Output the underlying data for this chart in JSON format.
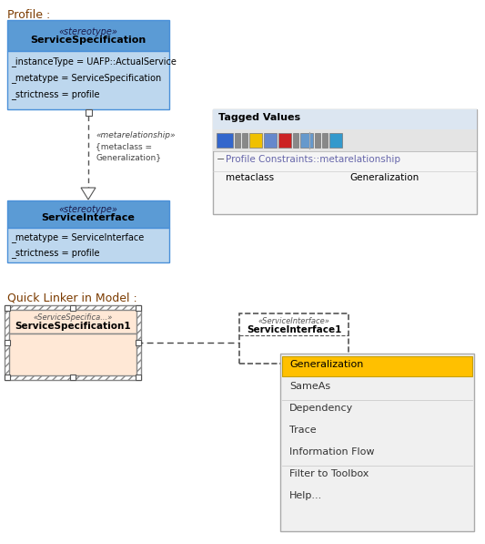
{
  "bg_color": "#ffffff",
  "title_color": "#7B3B00",
  "fig_w": 5.33,
  "fig_h": 5.97,
  "dpi": 100,
  "profile_label": "Profile :",
  "quicklinker_label": "Quick Linker in Model :",
  "ss_header_text1": "«stereotype»",
  "ss_header_text2": "ServiceSpecification",
  "ss_body_lines": [
    "_instanceType = UAFP::ActualService",
    "_metatype = ServiceSpecification",
    "_strictness = profile"
  ],
  "ss_header_bg": "#5b9bd5",
  "ss_body_bg": "#bdd7ee",
  "si_header_text1": "«stereotype»",
  "si_header_text2": "ServiceInterface",
  "si_body_lines": [
    "_metatype = ServiceInterface",
    "_strictness = profile"
  ],
  "si_header_bg": "#5b9bd5",
  "si_body_bg": "#bdd7ee",
  "metarel_label1": "«metarelationship»",
  "metarel_label2": "{metaclass =",
  "metarel_label3": "Generalization}",
  "tv_title": "Tagged Values",
  "tv_row1": "Profile Constraints::metarelationship",
  "tv_col1": "metaclass",
  "tv_col2": "Generalization",
  "ql_ss_stereo": "«ServiceSpecifica...»",
  "ql_ss_name": "ServiceSpecification1",
  "ql_si_stereo": "«ServiceInterface»",
  "ql_si_name": "ServiceInterface1",
  "menu_items": [
    "Generalization",
    "SameAs",
    "Dependency",
    "Trace",
    "Information Flow",
    "Filter to Toolbox",
    "Help..."
  ],
  "menu_highlight": "#ffc000",
  "menu_bg": "#f0f0f0",
  "menu_border": "#aaaaaa",
  "separator_after": [
    1,
    4
  ]
}
